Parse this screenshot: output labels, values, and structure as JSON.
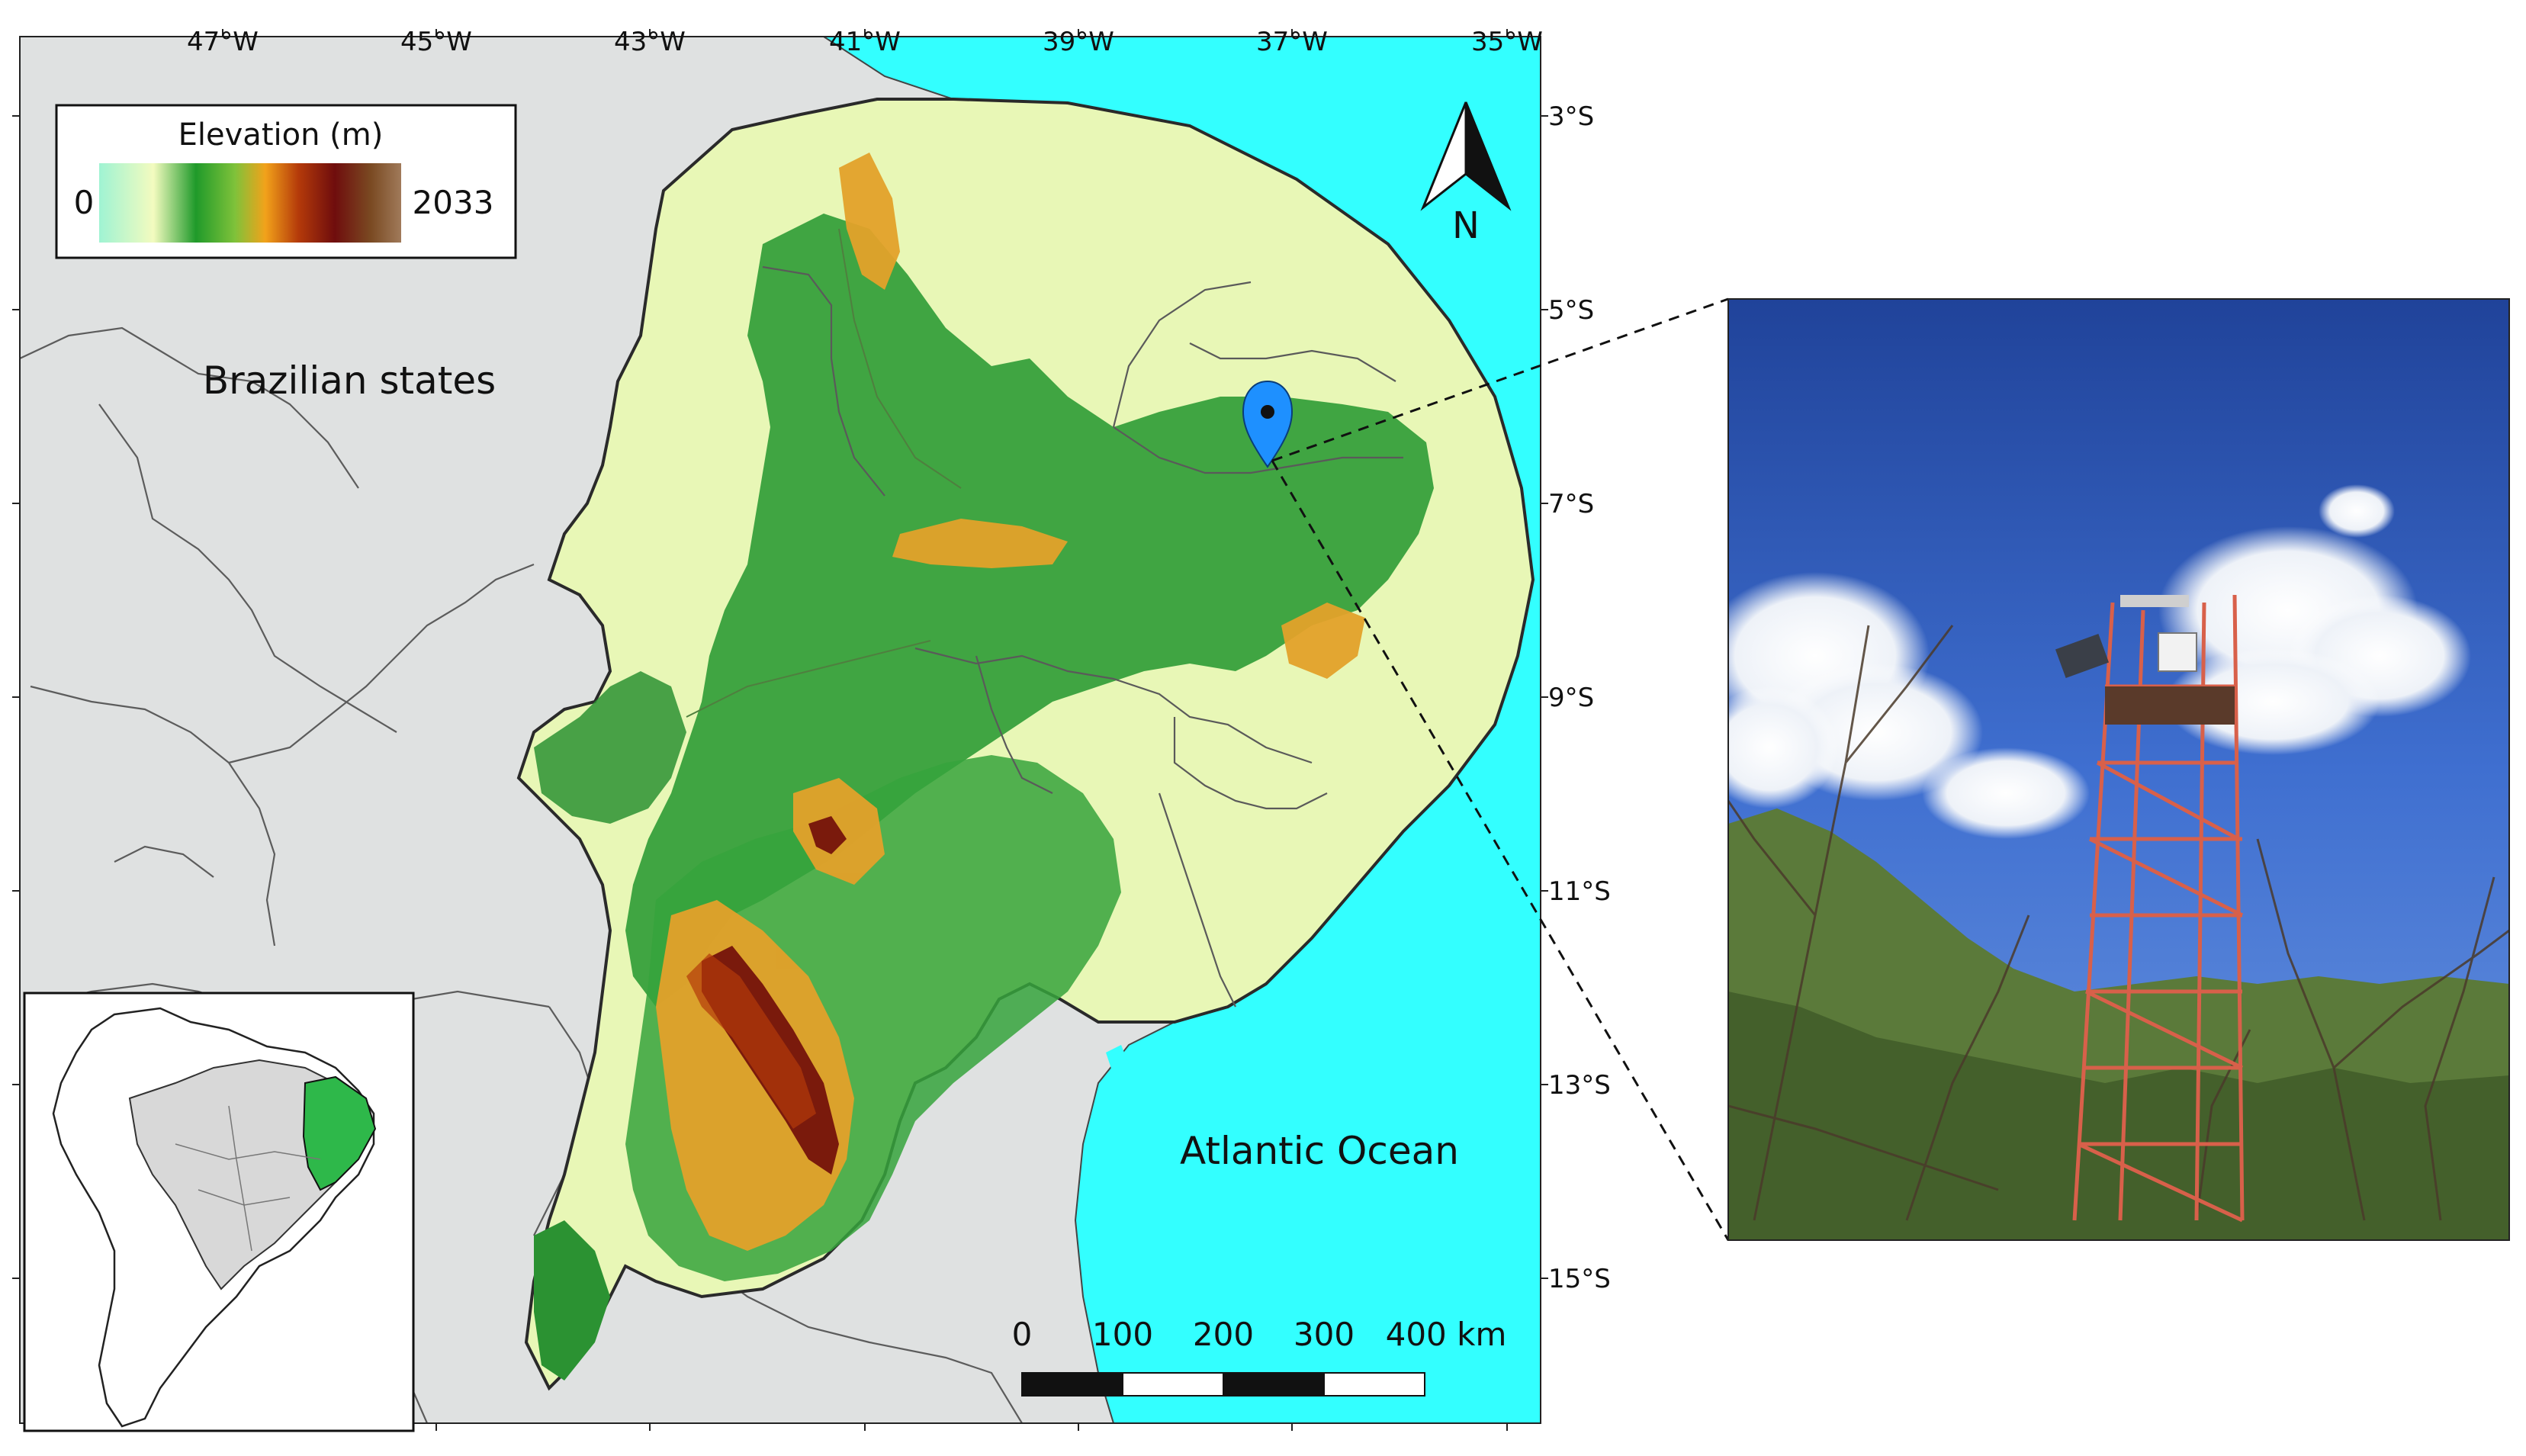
{
  "axes": {
    "longitude_labels": [
      "47°W",
      "45°W",
      "43°W",
      "41°W",
      "39°W",
      "37°W",
      "35°W"
    ],
    "latitude_labels": [
      "3°S",
      "5°S",
      "7°S",
      "9°S",
      "11°S",
      "13°S",
      "15°S"
    ]
  },
  "legend": {
    "title": "Elevation (m)",
    "min_label": "0",
    "max_label": "2033",
    "gradient_colors": [
      "#9ff3d3",
      "#f3fbbf",
      "#1f9a2a",
      "#7fc23a",
      "#f2a21a",
      "#b43a0a",
      "#6f0d0d",
      "#7a4a22",
      "#a07a5a"
    ]
  },
  "north_arrow": {
    "label": "N"
  },
  "labels": {
    "brazilian_states": "Brazilian states",
    "atlantic_ocean": "Atlantic Ocean"
  },
  "scale_bar": {
    "tick_labels": [
      "0",
      "100",
      "200",
      "300",
      "400 km"
    ]
  },
  "marker": {
    "icon": "map-pin-icon",
    "color": "#1e90ff"
  },
  "colors": {
    "ocean": "#33ffff",
    "land": "#dfe1e1",
    "lowland": "#e8f7b6",
    "forest": "#2e9b35",
    "highland": "#e3a12a",
    "peak": "#7a1a0c"
  }
}
